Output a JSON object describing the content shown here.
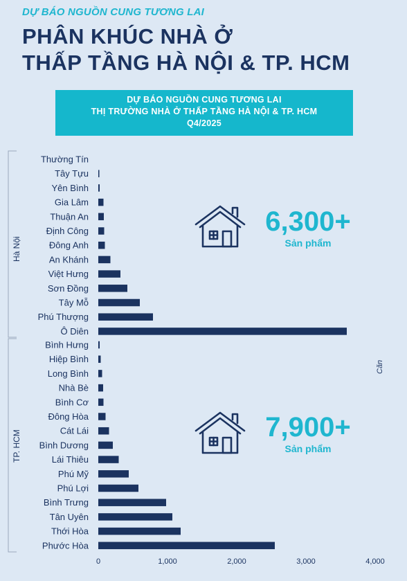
{
  "header": {
    "kicker": "DỰ BÁO NGUỒN CUNG TƯƠNG LAI",
    "title_line1": "PHÂN KHÚC NHÀ Ở",
    "title_line2": "THẤP TẦNG HÀ NỘI & TP. HCM"
  },
  "banner": {
    "line1": "DỰ BÁO NGUỒN CUNG TƯƠNG LAI",
    "line2": "THỊ TRƯỜNG NHÀ Ở THẤP TẦNG HÀ NỘI & TP. HCM",
    "line3": "Q4/2025"
  },
  "stats": {
    "hanoi": {
      "value": "6,300+",
      "unit": "Sản phẩm",
      "icon": "house-icon"
    },
    "hcm": {
      "value": "7,900+",
      "unit": "Sản phẩm",
      "icon": "house-icon"
    }
  },
  "chart_data": {
    "type": "bar",
    "orientation": "horizontal",
    "unit_label": "Căn",
    "xlim": [
      0,
      4000
    ],
    "xticks": [
      "0",
      "1,000",
      "2,000",
      "3,000",
      "4,000"
    ],
    "bar_color": "#1b3360",
    "grid": false,
    "groups": [
      {
        "name": "Hà Nội",
        "categories": [
          "Thường Tín",
          "Tây Tựu",
          "Yên Bình",
          "Gia Lâm",
          "Thuận An",
          "Định Công",
          "Đông Anh",
          "An Khánh",
          "Việt Hưng",
          "Sơn Đồng",
          "Tây Mỗ",
          "Phú Thượng",
          "Ô Diên"
        ],
        "values": [
          0,
          15,
          20,
          75,
          80,
          85,
          95,
          175,
          320,
          420,
          600,
          790,
          3590
        ]
      },
      {
        "name": "TP. HCM",
        "categories": [
          "Bình Hưng",
          "Hiệp Bình",
          "Long Bình",
          "Nhà Bè",
          "Bình Cơ",
          "Đông Hòa",
          "Cát Lái",
          "Bình Dương",
          "Lái Thiêu",
          "Phú Mỹ",
          "Phú Lợi",
          "Bình Trưng",
          "Tân Uyên",
          "Thới Hòa",
          "Phước Hòa"
        ],
        "values": [
          20,
          35,
          55,
          70,
          75,
          105,
          155,
          210,
          295,
          440,
          580,
          980,
          1070,
          1190,
          2550
        ]
      }
    ]
  }
}
